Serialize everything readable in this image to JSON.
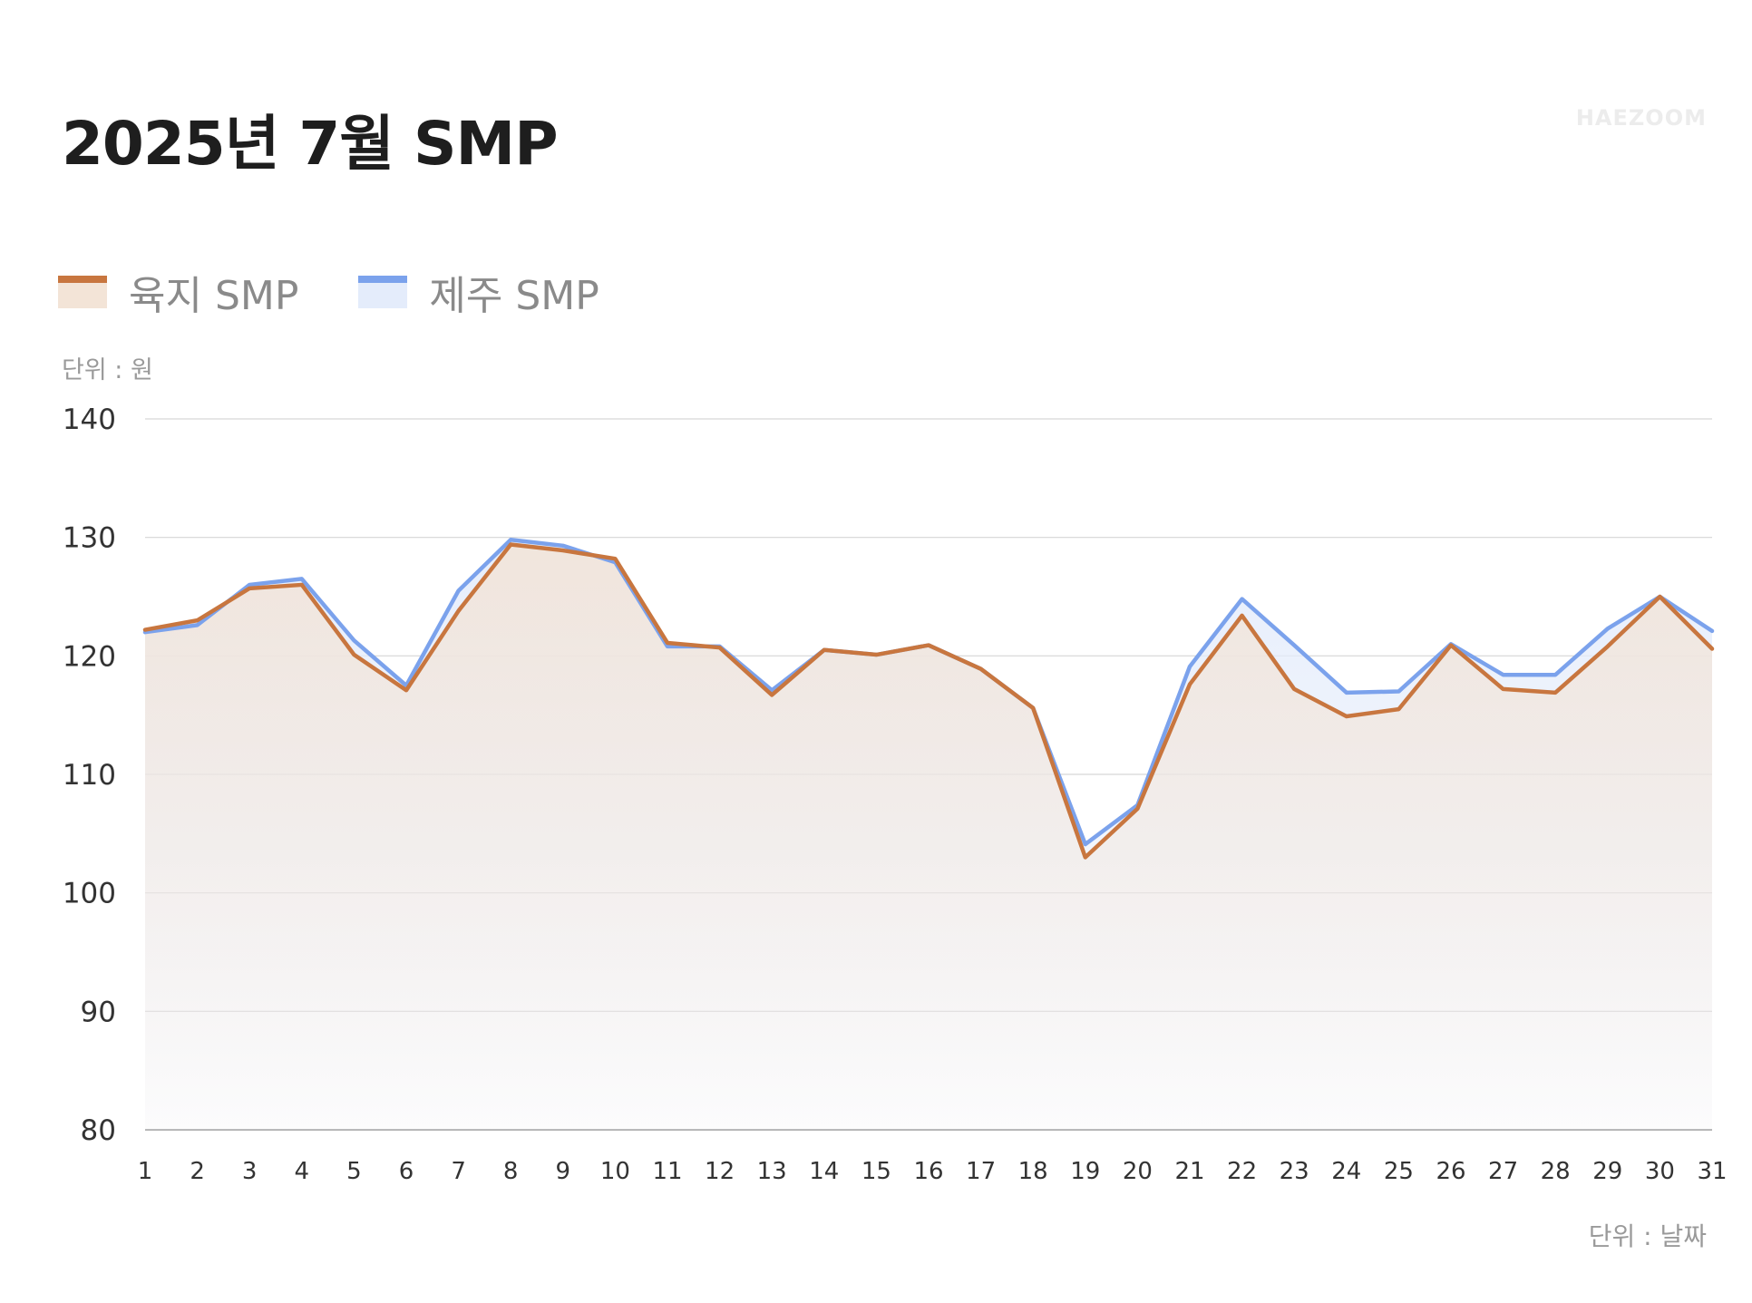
{
  "title": "2025년 7월 SMP",
  "watermark": "HAEZOOM",
  "unit_y": "단위 : 원",
  "unit_x": "단위 : 날짜",
  "colors": {
    "mainland_line": "#c8763f",
    "mainland_fill": "#f3e4d7",
    "jeju_line": "#7ba2ec",
    "jeju_fill": "#e4ecfb",
    "grid": "#d6d6d6"
  },
  "legend": [
    {
      "label": "육지 SMP",
      "color": "#c8763f",
      "fill": "#f3e4d7"
    },
    {
      "label": "제주 SMP",
      "color": "#7ba2ec",
      "fill": "#e4ecfb"
    }
  ],
  "chart_data": {
    "type": "area",
    "x": [
      1,
      2,
      3,
      4,
      5,
      6,
      7,
      8,
      9,
      10,
      11,
      12,
      13,
      14,
      15,
      16,
      17,
      18,
      19,
      20,
      21,
      22,
      23,
      24,
      25,
      26,
      27,
      28,
      29,
      30,
      31
    ],
    "ylim": [
      80,
      140
    ],
    "yticks": [
      80,
      90,
      100,
      110,
      120,
      130,
      140
    ],
    "grid": true,
    "legend_position": "top-left",
    "series": [
      {
        "name": "육지 SMP",
        "values": [
          122.2,
          123.0,
          125.7,
          126.0,
          120.1,
          117.1,
          123.8,
          129.4,
          128.9,
          128.2,
          121.1,
          120.7,
          116.7,
          120.5,
          120.1,
          120.9,
          118.9,
          115.6,
          103.0,
          107.1,
          117.6,
          123.4,
          117.2,
          114.9,
          115.5,
          120.9,
          117.2,
          116.9,
          120.8,
          125.0,
          120.6
        ]
      },
      {
        "name": "제주 SMP",
        "values": [
          122.0,
          122.6,
          126.0,
          126.5,
          121.3,
          117.5,
          125.5,
          129.8,
          129.3,
          127.9,
          120.8,
          120.8,
          117.1,
          120.5,
          120.1,
          120.9,
          118.9,
          115.6,
          104.1,
          107.4,
          119.1,
          124.8,
          120.9,
          116.9,
          117.0,
          121.0,
          118.4,
          118.4,
          122.3,
          125.0,
          122.1
        ]
      }
    ]
  }
}
